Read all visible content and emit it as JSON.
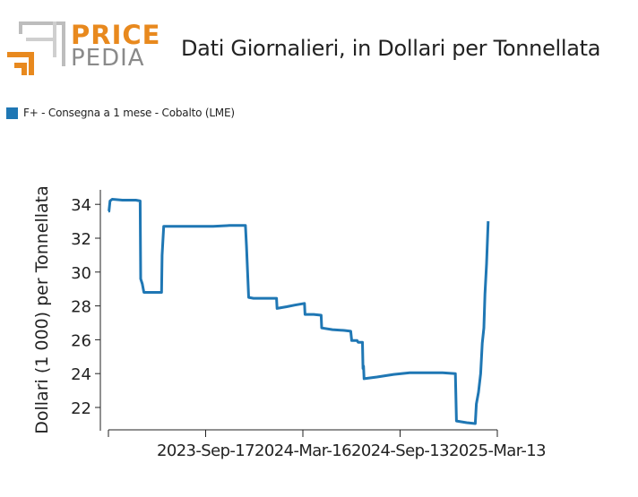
{
  "header": {
    "brand_top": "PRICE",
    "brand_bottom": "PEDIA",
    "title": "Dati Giornalieri, in Dollari per Tonnellata"
  },
  "colors": {
    "brand_orange": "#e8891e",
    "brand_gray": "#8a8a8a",
    "series": "#1f77b4"
  },
  "chart_data": {
    "type": "line",
    "title": "Dati Giornalieri, in Dollari per Tonnellata",
    "ylabel": "Dollari (1 000) per Tonnellata",
    "xlabel": "",
    "ylim": [
      21,
      35
    ],
    "yticks": [
      22,
      24,
      26,
      28,
      30,
      32,
      34
    ],
    "xticks": [
      {
        "date": "2023-03-20",
        "label": ""
      },
      {
        "date": "2023-09-17",
        "label": "2023-Sep-17"
      },
      {
        "date": "2024-03-16",
        "label": "2024-Mar-16"
      },
      {
        "date": "2024-09-13",
        "label": "2024-Sep-13"
      },
      {
        "date": "2025-03-13",
        "label": "2025-Mar-13"
      }
    ],
    "xlim": [
      "2023-03-20",
      "2025-03-13"
    ],
    "grid": false,
    "legend": "top-left",
    "series": [
      {
        "name": "F+ - Consegna a 1 mese - Cobalto (LME)",
        "points": [
          [
            "2023-03-20",
            33.6
          ],
          [
            "2023-03-21",
            33.6
          ],
          [
            "2023-03-23",
            34.2
          ],
          [
            "2023-03-27",
            34.3
          ],
          [
            "2023-04-15",
            34.25
          ],
          [
            "2023-05-10",
            34.25
          ],
          [
            "2023-05-18",
            34.2
          ],
          [
            "2023-05-19",
            29.6
          ],
          [
            "2023-05-22",
            29.3
          ],
          [
            "2023-05-25",
            28.8
          ],
          [
            "2023-06-10",
            28.8
          ],
          [
            "2023-06-27",
            28.8
          ],
          [
            "2023-06-28",
            31.0
          ],
          [
            "2023-07-01",
            32.7
          ],
          [
            "2023-08-01",
            32.7
          ],
          [
            "2023-09-01",
            32.7
          ],
          [
            "2023-10-01",
            32.7
          ],
          [
            "2023-11-01",
            32.75
          ],
          [
            "2023-11-30",
            32.75
          ],
          [
            "2023-12-02",
            31.5
          ],
          [
            "2023-12-06",
            28.5
          ],
          [
            "2023-12-15",
            28.45
          ],
          [
            "2024-01-15",
            28.45
          ],
          [
            "2024-01-27",
            28.45
          ],
          [
            "2024-01-28",
            27.85
          ],
          [
            "2024-02-15",
            27.95
          ],
          [
            "2024-03-01",
            28.05
          ],
          [
            "2024-03-19",
            28.15
          ],
          [
            "2024-03-20",
            27.5
          ],
          [
            "2024-04-05",
            27.5
          ],
          [
            "2024-04-19",
            27.45
          ],
          [
            "2024-04-20",
            26.7
          ],
          [
            "2024-05-10",
            26.6
          ],
          [
            "2024-06-01",
            26.55
          ],
          [
            "2024-06-13",
            26.5
          ],
          [
            "2024-06-15",
            25.95
          ],
          [
            "2024-06-25",
            25.95
          ],
          [
            "2024-06-27",
            25.85
          ],
          [
            "2024-07-05",
            25.85
          ],
          [
            "2024-07-06",
            24.3
          ],
          [
            "2024-07-07",
            24.45
          ],
          [
            "2024-07-08",
            23.7
          ],
          [
            "2024-08-01",
            23.8
          ],
          [
            "2024-09-01",
            23.95
          ],
          [
            "2024-10-01",
            24.05
          ],
          [
            "2024-11-01",
            24.05
          ],
          [
            "2024-12-01",
            24.05
          ],
          [
            "2024-12-25",
            24.0
          ],
          [
            "2024-12-27",
            21.2
          ],
          [
            "2025-01-15",
            21.1
          ],
          [
            "2025-01-31",
            21.05
          ],
          [
            "2025-02-02",
            22.2
          ],
          [
            "2025-02-06",
            22.9
          ],
          [
            "2025-02-10",
            24.0
          ],
          [
            "2025-02-13",
            25.8
          ],
          [
            "2025-02-16",
            26.7
          ],
          [
            "2025-02-18",
            28.7
          ],
          [
            "2025-02-21",
            30.5
          ],
          [
            "2025-02-24",
            33.0
          ]
        ]
      }
    ]
  }
}
